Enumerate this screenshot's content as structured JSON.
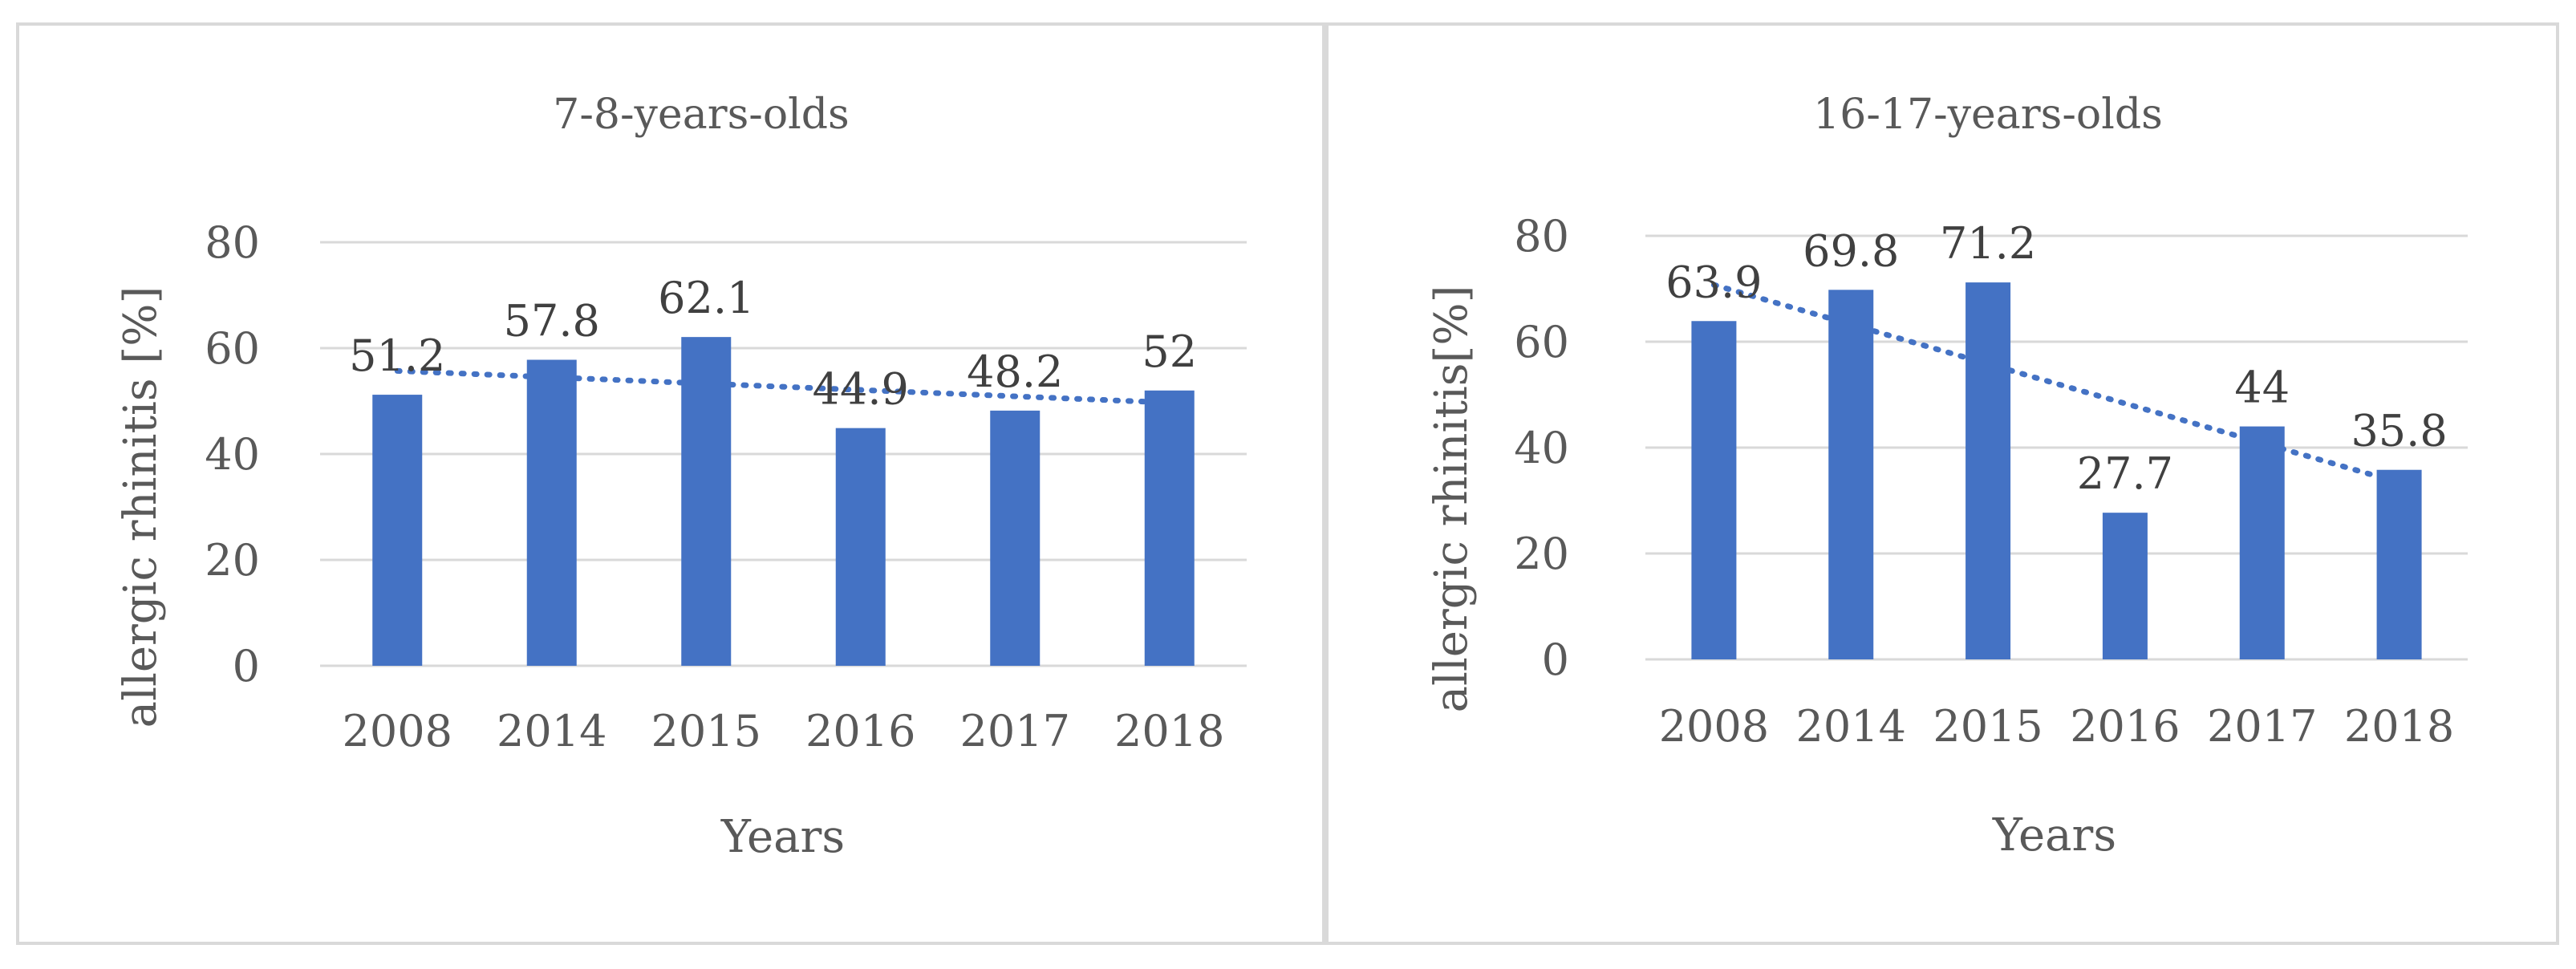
{
  "chart_data": [
    {
      "type": "bar",
      "title": "7-8-years-olds",
      "xlabel": "Years",
      "ylabel": "allergic rhinitis [%]",
      "categories": [
        "2008",
        "2014",
        "2015",
        "2016",
        "2017",
        "2018"
      ],
      "values": [
        51.2,
        57.8,
        62.1,
        44.9,
        48.2,
        52
      ],
      "data_labels": [
        "51.2",
        "57.8",
        "62.1",
        "44.9",
        "48.2",
        "52"
      ],
      "ylim": [
        0,
        80
      ],
      "yticks": [
        0,
        20,
        40,
        60,
        80
      ],
      "ytick_labels": [
        "0",
        "20",
        "40",
        "60",
        "80"
      ],
      "trendline": "linear, dotted",
      "grid": true,
      "bar_color": "#4472C4"
    },
    {
      "type": "bar",
      "title": "16-17-years-olds",
      "xlabel": "Years",
      "ylabel": "allergic rhinitis[%]",
      "categories": [
        "2008",
        "2014",
        "2015",
        "2016",
        "2017",
        "2018"
      ],
      "values": [
        63.9,
        69.8,
        71.2,
        27.7,
        44,
        35.8
      ],
      "data_labels": [
        "63.9",
        "69.8",
        "71.2",
        "27.7",
        "44",
        "35.8"
      ],
      "ylim": [
        0,
        80
      ],
      "yticks": [
        0,
        20,
        40,
        60,
        80
      ],
      "ytick_labels": [
        "0",
        "20",
        "40",
        "60",
        "80"
      ],
      "trendline": "linear, dotted",
      "grid": true,
      "bar_color": "#4472C4"
    }
  ]
}
